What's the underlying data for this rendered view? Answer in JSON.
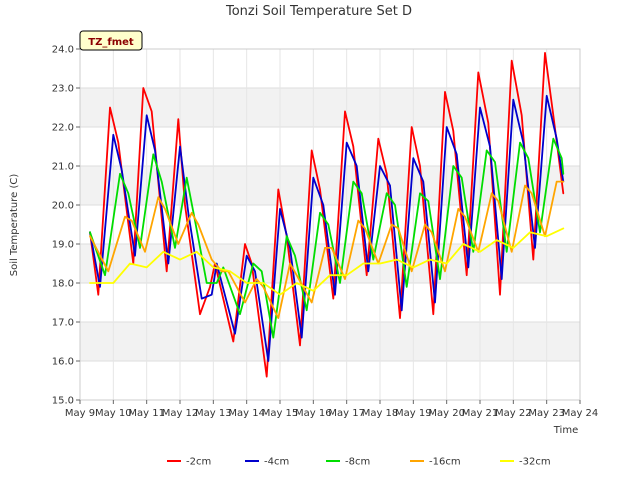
{
  "chart_data": {
    "type": "line",
    "title": "Tonzi Soil Temperature Set D",
    "xlabel": "Time",
    "ylabel": "Soil Temperature (C)",
    "badge": "TZ_fmet",
    "ylim": [
      15.0,
      24.0
    ],
    "xlim": [
      9,
      24
    ],
    "y_ticks": [
      "15.0",
      "16.0",
      "17.0",
      "18.0",
      "19.0",
      "20.0",
      "21.0",
      "22.0",
      "23.0",
      "24.0"
    ],
    "x_tick_values": [
      9,
      10,
      11,
      12,
      13,
      14,
      15,
      16,
      17,
      18,
      19,
      20,
      21,
      22,
      23,
      24
    ],
    "x_ticks": [
      "May 9",
      "May 10",
      "May 11",
      "May 12",
      "May 13",
      "May 14",
      "May 15",
      "May 16",
      "May 17",
      "May 18",
      "May 19",
      "May 20",
      "May 21",
      "May 22",
      "May 23",
      "May 24"
    ],
    "legend_position": "bottom",
    "series": [
      {
        "name": "-2cm",
        "color": "#ff0000",
        "x": [
          9.3,
          9.55,
          9.9,
          10.15,
          10.6,
          10.9,
          11.15,
          11.6,
          11.95,
          12.15,
          12.6,
          12.9,
          13.05,
          13.6,
          13.95,
          14.15,
          14.6,
          14.95,
          15.2,
          15.6,
          15.95,
          16.2,
          16.6,
          16.95,
          17.2,
          17.6,
          17.95,
          18.2,
          18.6,
          18.95,
          19.2,
          19.6,
          19.95,
          20.2,
          20.6,
          20.95,
          21.25,
          21.6,
          21.95,
          22.25,
          22.6,
          22.95,
          23.2,
          23.5
        ],
        "y": [
          19.3,
          17.7,
          22.5,
          21.6,
          18.5,
          23.0,
          22.4,
          18.3,
          22.2,
          20.0,
          17.2,
          17.9,
          18.5,
          16.5,
          19.0,
          18.5,
          15.6,
          20.4,
          19.2,
          16.4,
          21.4,
          20.4,
          17.6,
          22.4,
          21.5,
          18.2,
          21.7,
          20.8,
          17.1,
          22.0,
          21.0,
          17.2,
          22.9,
          21.9,
          18.2,
          23.4,
          22.1,
          17.7,
          23.7,
          22.3,
          18.6,
          23.9,
          22.3,
          20.3
        ]
      },
      {
        "name": "-4cm",
        "color": "#0000cc",
        "x": [
          9.3,
          9.6,
          10.0,
          10.25,
          10.65,
          11.0,
          11.25,
          11.65,
          12.0,
          12.25,
          12.65,
          12.95,
          13.1,
          13.65,
          14.0,
          14.25,
          14.65,
          15.0,
          15.3,
          15.65,
          16.0,
          16.3,
          16.65,
          17.0,
          17.3,
          17.65,
          18.0,
          18.3,
          18.65,
          19.0,
          19.3,
          19.65,
          20.0,
          20.3,
          20.65,
          21.0,
          21.3,
          21.65,
          22.0,
          22.3,
          22.65,
          23.0,
          23.3,
          23.5
        ],
        "y": [
          19.3,
          17.9,
          21.8,
          20.9,
          18.7,
          22.3,
          21.4,
          18.5,
          21.5,
          19.8,
          17.6,
          17.7,
          18.5,
          16.7,
          18.7,
          18.3,
          16.0,
          19.9,
          18.9,
          16.6,
          20.7,
          20.0,
          17.7,
          21.6,
          21.0,
          18.3,
          21.0,
          20.5,
          17.3,
          21.2,
          20.6,
          17.5,
          22.0,
          21.3,
          18.4,
          22.5,
          21.5,
          18.1,
          22.7,
          21.6,
          18.9,
          22.8,
          21.7,
          20.6
        ]
      },
      {
        "name": "-8cm",
        "color": "#00dd00",
        "x": [
          9.3,
          9.75,
          10.2,
          10.45,
          10.8,
          11.2,
          11.45,
          11.85,
          12.2,
          12.45,
          12.8,
          13.1,
          13.3,
          13.8,
          14.2,
          14.45,
          14.8,
          15.2,
          15.45,
          15.8,
          16.2,
          16.45,
          16.8,
          17.2,
          17.45,
          17.8,
          18.2,
          18.45,
          18.8,
          19.2,
          19.45,
          19.8,
          20.2,
          20.45,
          20.8,
          21.2,
          21.45,
          21.8,
          22.2,
          22.45,
          22.8,
          23.2,
          23.45,
          23.5
        ],
        "y": [
          19.3,
          18.2,
          20.8,
          20.3,
          18.9,
          21.3,
          20.6,
          18.9,
          20.7,
          19.6,
          18.0,
          18.0,
          18.4,
          17.2,
          18.5,
          18.3,
          16.6,
          19.2,
          18.7,
          17.3,
          19.8,
          19.5,
          18.0,
          20.6,
          20.3,
          18.6,
          20.3,
          20.0,
          17.9,
          20.3,
          20.1,
          18.1,
          21.0,
          20.7,
          18.8,
          21.4,
          21.1,
          18.8,
          21.6,
          21.2,
          19.3,
          21.7,
          21.2,
          20.8
        ]
      },
      {
        "name": "-16cm",
        "color": "#ffa500",
        "x": [
          9.3,
          9.85,
          10.35,
          10.55,
          10.95,
          11.35,
          11.55,
          11.95,
          12.35,
          12.55,
          12.95,
          13.25,
          13.45,
          13.95,
          14.3,
          14.5,
          14.95,
          15.3,
          15.5,
          15.95,
          16.35,
          16.55,
          16.95,
          17.35,
          17.55,
          17.95,
          18.35,
          18.55,
          18.95,
          19.35,
          19.55,
          19.95,
          20.35,
          20.55,
          20.95,
          21.35,
          21.55,
          21.95,
          22.35,
          22.55,
          22.95,
          23.3,
          23.5
        ],
        "y": [
          19.2,
          18.3,
          19.7,
          19.6,
          18.8,
          20.2,
          19.9,
          19.0,
          19.8,
          19.5,
          18.6,
          18.3,
          18.3,
          17.5,
          18.1,
          17.9,
          17.1,
          18.5,
          18.2,
          17.5,
          18.9,
          18.9,
          18.1,
          19.6,
          19.4,
          18.5,
          19.5,
          19.4,
          18.3,
          19.5,
          19.3,
          18.3,
          19.9,
          19.7,
          18.8,
          20.3,
          20.1,
          18.8,
          20.5,
          20.3,
          19.2,
          20.6,
          20.6
        ]
      },
      {
        "name": "-32cm",
        "color": "#ffff00",
        "x": [
          9.3,
          10.0,
          10.5,
          11.0,
          11.5,
          12.0,
          12.5,
          13.0,
          13.5,
          14.0,
          14.5,
          15.0,
          15.5,
          16.0,
          16.5,
          17.0,
          17.5,
          18.0,
          18.5,
          19.0,
          19.5,
          20.0,
          20.5,
          21.0,
          21.5,
          22.0,
          22.5,
          23.0,
          23.5
        ],
        "y": [
          18.0,
          18.0,
          18.5,
          18.4,
          18.8,
          18.6,
          18.8,
          18.4,
          18.3,
          18.0,
          18.0,
          17.7,
          18.0,
          17.8,
          18.2,
          18.2,
          18.5,
          18.5,
          18.6,
          18.4,
          18.6,
          18.5,
          19.0,
          18.8,
          19.1,
          18.9,
          19.3,
          19.2,
          19.4
        ]
      }
    ]
  }
}
